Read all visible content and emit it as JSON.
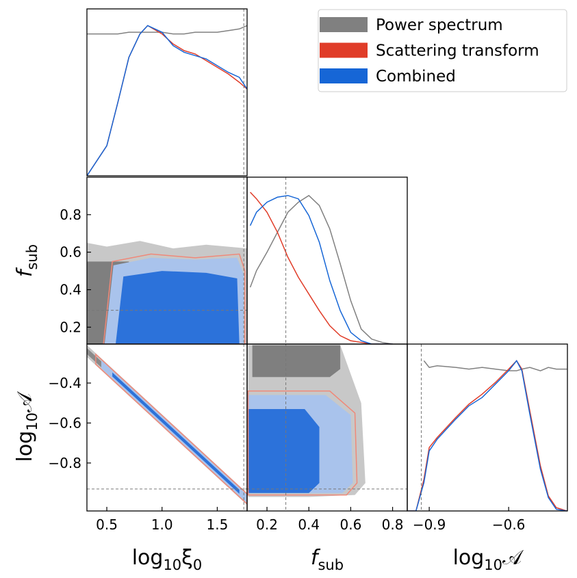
{
  "chart_data": {
    "type": "corner",
    "density_lim": [
      0,
      1
    ],
    "parameters": [
      {
        "label": [
          "log",
          "10",
          "ξ",
          "0"
        ],
        "xlim": [
          0.32,
          1.77
        ],
        "xticks": [
          0.5,
          {
            "value": 1,
            "label": "1.0"
          },
          1.5
        ],
        "truth": 1.74
      },
      {
        "label": [
          "f",
          "sub"
        ],
        "xlim": [
          0.105,
          0.87
        ],
        "xticks": [
          0.2,
          0.4,
          0.6,
          0.8
        ],
        "ylim": [
          0.11,
          1.0
        ],
        "yticks": [
          0.2,
          0.4,
          0.6,
          0.8
        ],
        "truth": 0.29
      },
      {
        "label": [
          "log",
          "10",
          "𝒜"
        ],
        "xlim": [
          -0.983,
          -0.378
        ],
        "xticks": [
          {
            "value": -0.9,
            "label": "−0.9"
          },
          {
            "value": -0.6,
            "label": "−0.6"
          }
        ],
        "ylim": [
          -1.04,
          -0.205
        ],
        "yticks": [
          {
            "value": -0.8,
            "label": "−0.8"
          },
          {
            "value": -0.6,
            "label": "−0.6"
          },
          {
            "value": -0.4,
            "label": "−0.4"
          }
        ],
        "truth": -0.93
      }
    ],
    "series": [
      {
        "name": "Power spectrum",
        "color": "#808080",
        "marginals": [
          {
            "x": [
              0.32,
              0.5,
              0.6,
              0.7,
              0.8,
              0.87,
              1.0,
              1.1,
              1.2,
              1.3,
              1.4,
              1.5,
              1.6,
              1.7,
              1.77
            ],
            "values": [
              0.85,
              0.85,
              0.85,
              0.86,
              0.86,
              0.86,
              0.86,
              0.85,
              0.85,
              0.86,
              0.86,
              0.86,
              0.87,
              0.88,
              0.9
            ]
          },
          {
            "x": [
              0.12,
              0.15,
              0.2,
              0.25,
              0.3,
              0.35,
              0.4,
              0.45,
              0.5,
              0.55,
              0.6,
              0.65,
              0.7,
              0.75,
              0.8
            ],
            "values": [
              0.34,
              0.44,
              0.55,
              0.67,
              0.79,
              0.85,
              0.89,
              0.83,
              0.69,
              0.48,
              0.26,
              0.09,
              0.03,
              0.01,
              0
            ]
          },
          {
            "x": [
              -0.98,
              -0.95,
              -0.92,
              -0.9,
              -0.87,
              -0.8,
              -0.75,
              -0.7,
              -0.65,
              -0.6,
              -0.57,
              -0.55,
              -0.52,
              -0.48,
              -0.45,
              -0.42,
              -0.38
            ],
            "values": [
              null,
              null,
              0.9,
              0.86,
              0.87,
              0.86,
              0.85,
              0.86,
              0.85,
              0.84,
              0.84,
              0.85,
              0.86,
              0.84,
              0.86,
              0.85,
              0.85
            ]
          }
        ],
        "contours": [
          [
            {
              "fill": "#c8c8c8",
              "x": [
                0.32,
                0.5,
                0.8,
                1.1,
                1.4,
                1.77,
                1.77,
                0.32
              ],
              "y": [
                0.65,
                0.63,
                0.66,
                0.62,
                0.64,
                0.62,
                0.11,
                0.11
              ]
            },
            {
              "fill": "#7f7f7f",
              "x": [
                0.32,
                0.7,
                0.7,
                0.32
              ],
              "y": [
                0.55,
                0.55,
                0.11,
                0.11
              ]
            }
          ],
          [
            {
              "fill": "#c8c8c8",
              "x": [
                0.32,
                1.77,
                1.77,
                0.32
              ],
              "y": [
                -0.21,
                -0.95,
                -1.01,
                -0.27
              ]
            },
            {
              "fill": "#8a8a8a",
              "x": [
                0.32,
                1.77,
                1.77,
                0.32
              ],
              "y": [
                -0.225,
                -0.965,
                -0.995,
                -0.255
              ]
            }
          ],
          [
            {
              "fill": "#c8c8c8",
              "x": [
                0.11,
                0.2,
                0.4,
                0.55,
                0.65,
                0.67,
                0.62,
                0.4,
                0.11
              ],
              "y": [
                -0.21,
                -0.21,
                -0.21,
                -0.21,
                -0.5,
                -0.9,
                -0.96,
                -0.97,
                -0.97
              ]
            },
            {
              "fill": "#7f7f7f",
              "x": [
                0.13,
                0.55,
                0.55,
                0.5,
                0.13
              ],
              "y": [
                -0.21,
                -0.21,
                -0.33,
                -0.37,
                -0.37
              ]
            }
          ]
        ]
      },
      {
        "name": "Scattering transform",
        "color": "#e03c28",
        "marginals": [
          {
            "x": [
              0.32,
              0.5,
              0.6,
              0.7,
              0.8,
              0.87,
              1.0,
              1.1,
              1.2,
              1.3,
              1.4,
              1.5,
              1.6,
              1.7,
              1.77
            ],
            "values": [
              0,
              0.18,
              0.44,
              0.71,
              0.85,
              0.9,
              0.85,
              0.79,
              0.75,
              0.73,
              0.69,
              0.65,
              0.61,
              0.56,
              0.52
            ]
          },
          {
            "x": [
              0.12,
              0.15,
              0.2,
              0.25,
              0.3,
              0.35,
              0.4,
              0.45,
              0.5,
              0.55,
              0.6,
              0.65,
              0.7,
              0.75,
              0.8
            ],
            "values": [
              0.91,
              0.87,
              0.79,
              0.67,
              0.52,
              0.4,
              0.3,
              0.2,
              0.11,
              0.05,
              0.02,
              0.01,
              0,
              0,
              0
            ]
          },
          {
            "x": [
              -0.98,
              -0.95,
              -0.92,
              -0.9,
              -0.87,
              -0.8,
              -0.75,
              -0.7,
              -0.65,
              -0.6,
              -0.57,
              -0.55,
              -0.52,
              -0.48,
              -0.45,
              -0.42,
              -0.38
            ],
            "values": [
              0,
              0,
              0.19,
              0.38,
              0.44,
              0.56,
              0.64,
              0.7,
              0.77,
              0.85,
              0.9,
              0.85,
              0.6,
              0.27,
              0.09,
              0.02,
              0
            ]
          }
        ],
        "contours": [
          [
            {
              "stroke": "#f08878",
              "x": [
                0.47,
                0.55,
                0.9,
                1.3,
                1.7,
                1.75,
                1.75,
                0.47
              ],
              "y": [
                0.11,
                0.55,
                0.59,
                0.57,
                0.59,
                0.5,
                0.11,
                0.11
              ]
            }
          ],
          [
            {
              "stroke": "#f08878",
              "x": [
                0.4,
                1.77,
                1.77,
                0.4
              ],
              "y": [
                -0.256,
                -0.955,
                -1.005,
                -0.306
              ]
            }
          ],
          [
            {
              "stroke": "#f08878",
              "x": [
                0.11,
                0.5,
                0.62,
                0.63,
                0.58,
                0.11
              ],
              "y": [
                -0.44,
                -0.44,
                -0.55,
                -0.9,
                -0.96,
                -0.96
              ]
            }
          ]
        ]
      },
      {
        "name": "Combined",
        "color": "#1666d6",
        "marginals": [
          {
            "x": [
              0.32,
              0.5,
              0.6,
              0.7,
              0.8,
              0.87,
              1.0,
              1.1,
              1.2,
              1.3,
              1.4,
              1.5,
              1.6,
              1.7,
              1.77
            ],
            "values": [
              0,
              0.18,
              0.44,
              0.71,
              0.85,
              0.9,
              0.86,
              0.78,
              0.74,
              0.72,
              0.7,
              0.66,
              0.62,
              0.59,
              0.52
            ]
          },
          {
            "x": [
              0.12,
              0.15,
              0.2,
              0.25,
              0.3,
              0.35,
              0.4,
              0.45,
              0.5,
              0.55,
              0.6,
              0.65,
              0.7,
              0.75,
              0.8
            ],
            "values": [
              0.71,
              0.79,
              0.85,
              0.88,
              0.89,
              0.87,
              0.77,
              0.61,
              0.38,
              0.2,
              0.07,
              0.02,
              0,
              0,
              0
            ]
          },
          {
            "x": [
              -0.98,
              -0.95,
              -0.92,
              -0.9,
              -0.87,
              -0.8,
              -0.75,
              -0.7,
              -0.65,
              -0.6,
              -0.57,
              -0.55,
              -0.52,
              -0.48,
              -0.45,
              -0.42,
              -0.38
            ],
            "values": [
              0,
              0,
              0.17,
              0.36,
              0.43,
              0.55,
              0.63,
              0.68,
              0.76,
              0.84,
              0.9,
              0.84,
              0.58,
              0.25,
              0.08,
              0.01,
              0
            ]
          }
        ],
        "contours": [
          [
            {
              "fill": "#a9c3ec",
              "x": [
                0.48,
                0.56,
                0.9,
                1.3,
                1.68,
                1.74,
                1.74,
                0.48
              ],
              "y": [
                0.11,
                0.53,
                0.57,
                0.56,
                0.57,
                0.48,
                0.11,
                0.11
              ]
            },
            {
              "fill": "#2c72da",
              "x": [
                0.58,
                0.65,
                1.0,
                1.4,
                1.68,
                1.7,
                0.58
              ],
              "y": [
                0.11,
                0.47,
                0.5,
                0.49,
                0.46,
                0.11,
                0.11
              ]
            }
          ],
          [
            {
              "fill": "#a9c3ec",
              "x": [
                0.45,
                1.77,
                1.77,
                0.45
              ],
              "y": [
                -0.286,
                -0.96,
                -1.0,
                -0.326
              ]
            },
            {
              "fill": "#2c72da",
              "x": [
                0.55,
                1.7,
                1.7,
                0.55
              ],
              "y": [
                -0.347,
                -0.934,
                -0.954,
                -0.367
              ]
            }
          ],
          [
            {
              "fill": "#a9c3ec",
              "x": [
                0.11,
                0.48,
                0.6,
                0.61,
                0.56,
                0.11
              ],
              "y": [
                -0.46,
                -0.46,
                -0.56,
                -0.9,
                -0.95,
                -0.95
              ]
            },
            {
              "fill": "#2c72da",
              "x": [
                0.11,
                0.38,
                0.45,
                0.45,
                0.4,
                0.11
              ],
              "y": [
                -0.53,
                -0.53,
                -0.62,
                -0.9,
                -0.95,
                -0.95
              ]
            }
          ]
        ]
      }
    ]
  }
}
